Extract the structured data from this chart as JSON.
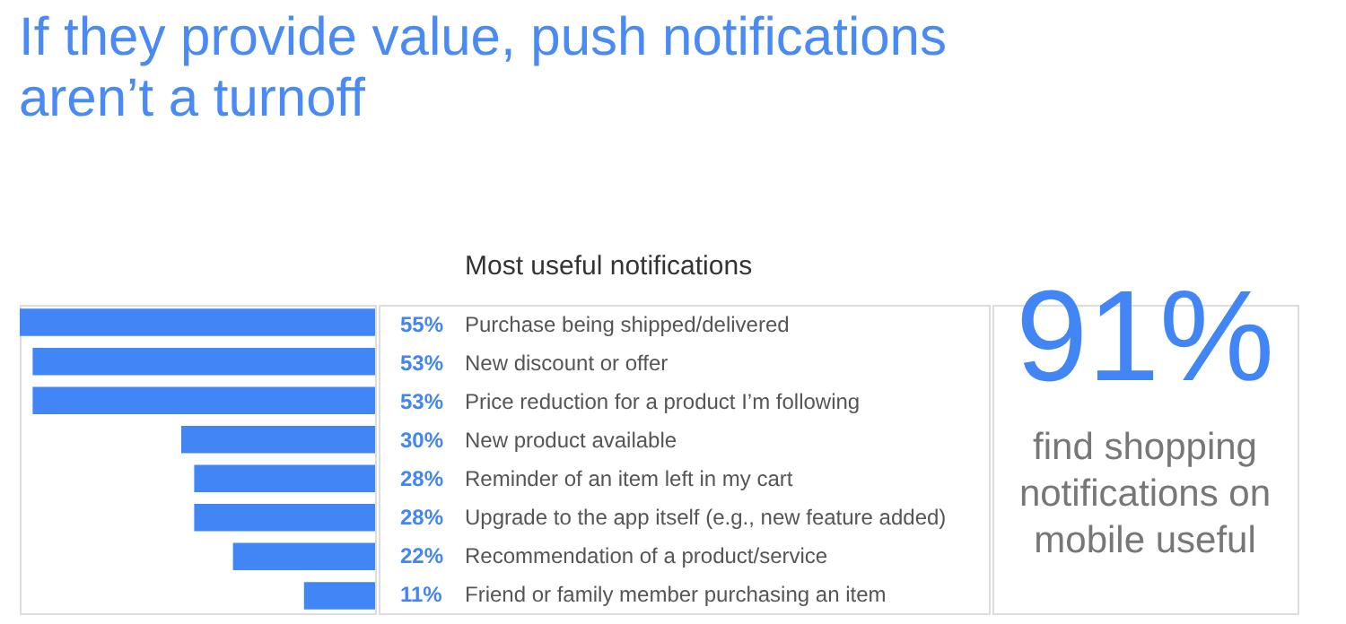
{
  "chart_data": {
    "type": "bar",
    "orientation": "horizontal",
    "title": "If they provide value, push notifications aren’t a turnoff",
    "subtitle": "Most useful notifications",
    "categories": [
      "Purchase being shipped/delivered",
      "New discount or offer",
      "Price reduction for a product I’m following",
      "New product available",
      "Reminder of an item left in my cart",
      "Upgrade to the app itself (e.g., new feature added)",
      "Recommendation of a product/service",
      "Friend or family member purchasing an item"
    ],
    "values": [
      55,
      53,
      53,
      30,
      28,
      28,
      22,
      11
    ],
    "value_labels": [
      "55%",
      "53%",
      "53%",
      "30%",
      "28%",
      "28%",
      "22%",
      "11%"
    ],
    "color": "#4285f4",
    "annotations": [
      "91%",
      "find shopping notifications on mobile useful"
    ]
  }
}
